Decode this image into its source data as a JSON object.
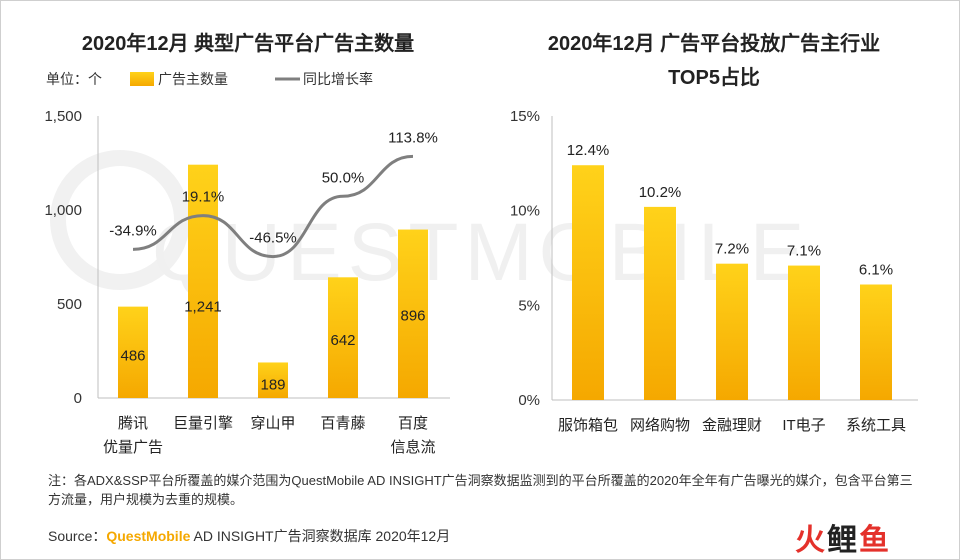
{
  "chart_data": [
    {
      "type": "bar",
      "title": "2020年12月 典型广告平台广告主数量",
      "unit_label": "单位：个",
      "legend": {
        "bar": "广告主数量",
        "line": "同比增长率"
      },
      "categories": [
        [
          "腾讯",
          "优量广告"
        ],
        [
          "巨量引擎"
        ],
        [
          "穿山甲"
        ],
        [
          "百青藤"
        ],
        [
          "百度",
          "信息流"
        ]
      ],
      "series": [
        {
          "name": "广告主数量",
          "type": "bar",
          "values": [
            486,
            1241,
            189,
            642,
            896
          ],
          "labels": [
            "486",
            "1,241",
            "189",
            "642",
            "896"
          ]
        },
        {
          "name": "同比增长率",
          "type": "line",
          "values": [
            -34.9,
            19.1,
            -46.5,
            50.0,
            113.8
          ],
          "labels": [
            "-34.9%",
            "19.1%",
            "-46.5%",
            "50.0%",
            "113.8%"
          ]
        }
      ],
      "y_ticks": [
        "0",
        "500",
        "1,000",
        "1,500"
      ],
      "ylim": [
        0,
        1500
      ]
    },
    {
      "type": "bar",
      "title": [
        "2020年12月 广告平台投放广告主行业",
        "TOP5占比"
      ],
      "categories": [
        "服饰箱包",
        "网络购物",
        "金融理财",
        "IT电子",
        "系统工具"
      ],
      "values": [
        12.4,
        10.2,
        7.2,
        7.1,
        6.1
      ],
      "labels": [
        "12.4%",
        "10.2%",
        "7.2%",
        "7.1%",
        "6.1%"
      ],
      "y_ticks": [
        "0%",
        "5%",
        "10%",
        "15%"
      ],
      "ylim": [
        0,
        15
      ]
    }
  ],
  "watermark": "QUESTMOBILE",
  "note": "注：各ADX&SSP平台所覆盖的媒介范围为QuestMobile AD INSIGHT广告洞察数据监测到的平台所覆盖的2020年全年有广告曝光的媒介，包含平台第三方流量，用户规模为去重的规模。",
  "source": {
    "prefix": "Source：",
    "brand": "QuestMobile",
    "rest": " AD INSIGHT广告洞察数据库 2020年12月"
  },
  "logo": {
    "fire": "火",
    "li": "鲤",
    "fish": "鱼"
  },
  "colors": {
    "bar_top": "#ffd21a",
    "bar_bottom": "#f5a800",
    "line": "#7f7f7f",
    "brand": "#f5a800"
  }
}
